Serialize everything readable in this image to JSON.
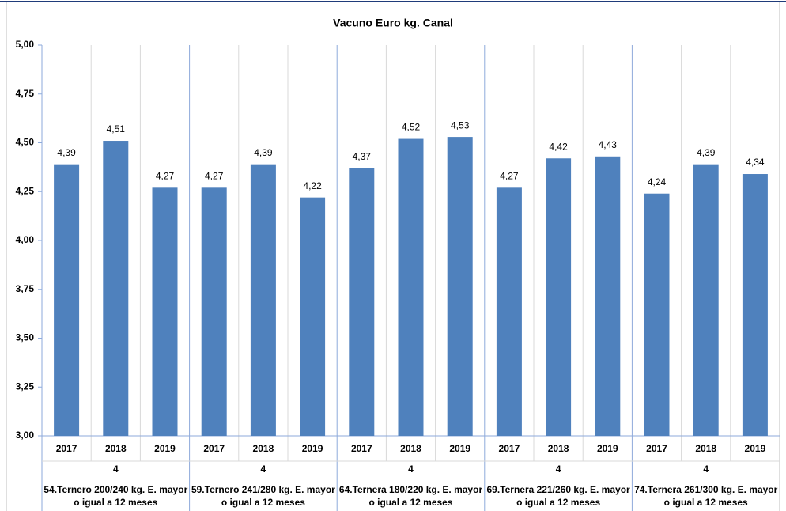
{
  "chart_data": {
    "type": "bar",
    "title": "Vacuno Euro kg. Canal",
    "color": "#4f81bd",
    "categories": [
      "2017",
      "2018",
      "2019",
      "2017",
      "2018",
      "2019",
      "2017",
      "2018",
      "2019",
      "2017",
      "2018",
      "2019",
      "2017",
      "2018",
      "2019"
    ],
    "values": [
      4.39,
      4.51,
      4.27,
      4.27,
      4.39,
      4.22,
      4.37,
      4.52,
      4.53,
      4.27,
      4.42,
      4.43,
      4.24,
      4.39,
      4.34
    ],
    "value_labels": [
      "4,39",
      "4,51",
      "4,27",
      "4,27",
      "4,39",
      "4,22",
      "4,37",
      "4,52",
      "4,53",
      "4,27",
      "4,42",
      "4,43",
      "4,24",
      "4,39",
      "4,34"
    ],
    "groups": [
      {
        "name": "4",
        "label_lines": [
          "54.Ternero 200/240 kg. E. mayor",
          "o igual a 12 meses"
        ]
      },
      {
        "name": "4",
        "label_lines": [
          "59.Ternero 241/280 kg. E. mayor",
          "o igual a 12 meses"
        ]
      },
      {
        "name": "4",
        "label_lines": [
          "64.Ternera 180/220 kg. E.  mayor",
          "o igual a 12 meses"
        ]
      },
      {
        "name": "4",
        "label_lines": [
          "69.Ternera 221/260 kg. E. mayor",
          "o igual a 12 meses"
        ]
      },
      {
        "name": "4",
        "label_lines": [
          "74.Ternera 261/300 kg. E. mayor",
          "o igual a 12 meses"
        ]
      }
    ],
    "ylim": [
      3,
      5
    ],
    "yticks": [
      {
        "value": 3,
        "label": "3,00"
      },
      {
        "value": 3.25,
        "label": "3,25"
      },
      {
        "value": 3.5,
        "label": "3,50"
      },
      {
        "value": 3.75,
        "label": "3,75"
      },
      {
        "value": 4,
        "label": "4,00"
      },
      {
        "value": 4.25,
        "label": "4,25"
      },
      {
        "value": 4.5,
        "label": "4,50"
      },
      {
        "value": 4.75,
        "label": "4,75"
      },
      {
        "value": 5,
        "label": "5,00"
      }
    ]
  }
}
